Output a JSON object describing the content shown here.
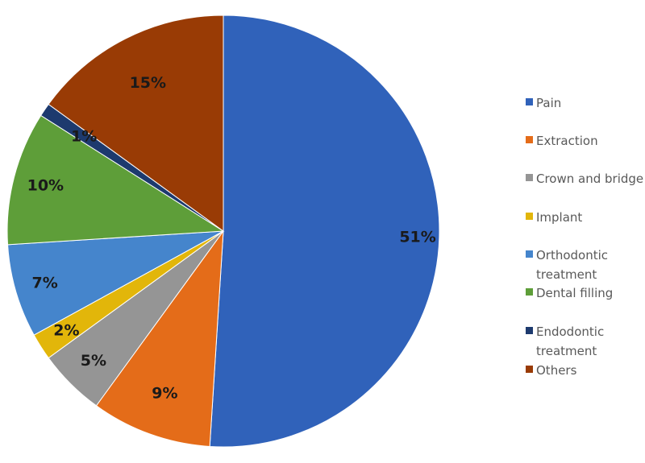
{
  "chart_data": {
    "type": "pie",
    "title": "",
    "legend_position": "right",
    "slices": [
      {
        "name": "Pain",
        "value": 51,
        "label": "51%",
        "color": "#3062BA"
      },
      {
        "name": "Extraction",
        "value": 9,
        "label": "9%",
        "color": "#E46C19"
      },
      {
        "name": "Crown and bridge",
        "value": 5,
        "label": "5%",
        "color": "#959595"
      },
      {
        "name": "Implant",
        "value": 2,
        "label": "2%",
        "color": "#E2B60A"
      },
      {
        "name": "Orthodontic treatment",
        "value": 7,
        "label": "7%",
        "color": "#4585CC"
      },
      {
        "name": "Dental filling",
        "value": 10,
        "label": "10%",
        "color": "#5E9E39"
      },
      {
        "name": "Endodontic treatment",
        "value": 1,
        "label": "1%",
        "color": "#1D3A6E"
      },
      {
        "name": "Others",
        "value": 15,
        "label": "15%",
        "color": "#993B05"
      }
    ],
    "legend": [
      {
        "lines": [
          "Pain"
        ]
      },
      {
        "lines": [
          "Extraction"
        ]
      },
      {
        "lines": [
          "Crown and bridge"
        ]
      },
      {
        "lines": [
          "Implant"
        ]
      },
      {
        "lines": [
          "Orthodontic",
          "treatment"
        ]
      },
      {
        "lines": [
          "Dental filling"
        ]
      },
      {
        "lines": [
          "Endodontic",
          "treatment"
        ]
      },
      {
        "lines": [
          "Others"
        ]
      }
    ]
  }
}
